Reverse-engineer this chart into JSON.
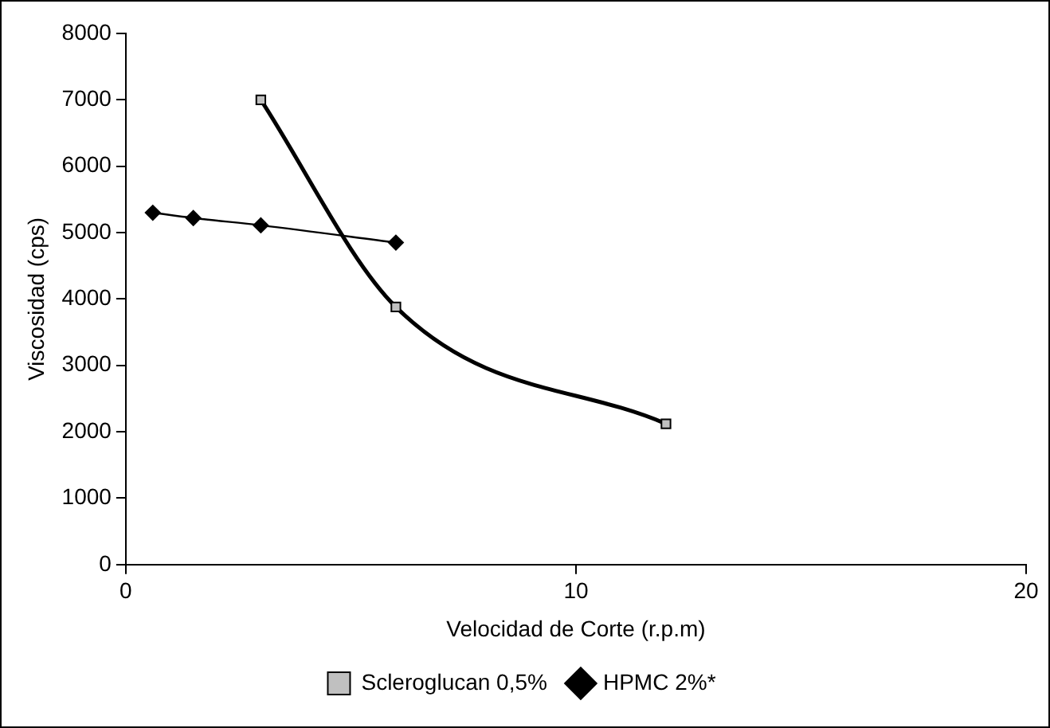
{
  "chart_data": {
    "type": "line",
    "xlabel": "Velocidad de Corte (r.p.m)",
    "ylabel": "Viscosidad (cps)",
    "xlim": [
      0,
      20
    ],
    "xticks": [
      0,
      10,
      20
    ],
    "ylim": [
      0,
      8000
    ],
    "yticks": [
      0,
      1000,
      2000,
      3000,
      4000,
      5000,
      6000,
      7000,
      8000
    ],
    "grid": false,
    "legend": "bottom",
    "series": [
      {
        "name": "Scleroglucan 0,5%",
        "color": "#000000",
        "marker": "square",
        "x": [
          3,
          6,
          12
        ],
        "values": [
          7000,
          3880,
          2120
        ]
      },
      {
        "name": "HPMC 2%*",
        "color": "#000000",
        "marker": "diamond",
        "x": [
          0.6,
          1.5,
          3,
          6
        ],
        "values": [
          5300,
          5220,
          5110,
          4850
        ]
      }
    ]
  }
}
